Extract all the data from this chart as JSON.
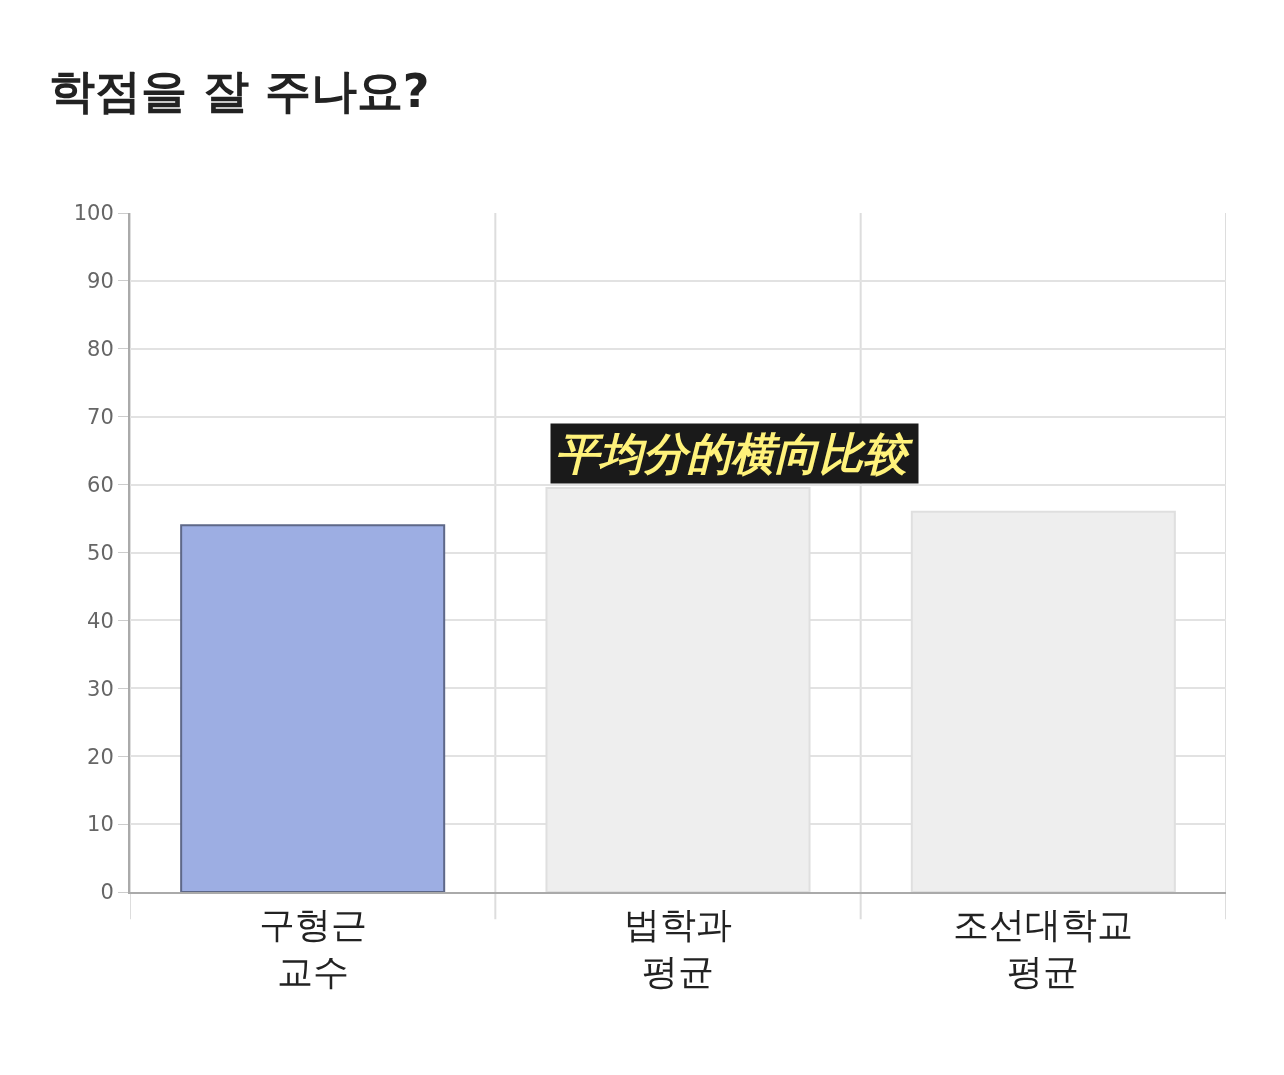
{
  "chart_data": {
    "type": "bar",
    "title": "학점을 잘 주나요?",
    "categories": [
      "구형근\n교수",
      "법학과\n평균",
      "조선대학교\n평균"
    ],
    "values": [
      54,
      59.5,
      56
    ],
    "colors": [
      "#9daee3",
      "#eeeeee",
      "#eeeeee"
    ],
    "ylim": [
      0,
      100
    ],
    "yticks": [
      0,
      10,
      20,
      30,
      40,
      50,
      60,
      70,
      80,
      90,
      100
    ],
    "grid": true,
    "annotations": [
      {
        "text": "平均分的横向比较"
      }
    ]
  }
}
